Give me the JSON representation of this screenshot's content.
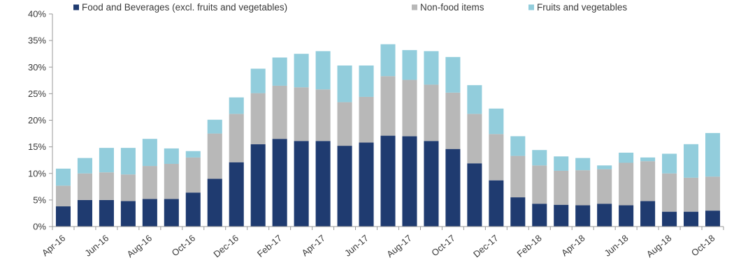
{
  "chart_data": {
    "type": "bar",
    "stacked": true,
    "categories": [
      "Apr-16",
      "May-16",
      "Jun-16",
      "Jul-16",
      "Aug-16",
      "Sep-16",
      "Oct-16",
      "Nov-16",
      "Dec-16",
      "Jan-17",
      "Feb-17",
      "Mar-17",
      "Apr-17",
      "May-17",
      "Jun-17",
      "Jul-17",
      "Aug-17",
      "Sep-17",
      "Oct-17",
      "Nov-17",
      "Dec-17",
      "Jan-18",
      "Feb-18",
      "Mar-18",
      "Apr-18",
      "May-18",
      "Jun-18",
      "Jul-18",
      "Aug-18",
      "Sep-18",
      "Oct-18"
    ],
    "x_tick_labels": [
      "Apr-16",
      "Jun-16",
      "Aug-16",
      "Oct-16",
      "Dec-16",
      "Feb-17",
      "Apr-17",
      "Jun-17",
      "Aug-17",
      "Oct-17",
      "Dec-17",
      "Feb-18",
      "Apr-18",
      "Jun-18",
      "Aug-18",
      "Oct-18"
    ],
    "series": [
      {
        "name": "Food and Beverages (excl. fruits and vegetables)",
        "color": "#1f3b70",
        "values": [
          3.8,
          5.0,
          5.0,
          4.8,
          5.2,
          5.2,
          6.4,
          9.0,
          12.1,
          15.5,
          16.5,
          16.1,
          16.1,
          15.2,
          15.8,
          17.1,
          17.0,
          16.1,
          14.6,
          11.9,
          8.7,
          5.5,
          4.3,
          4.1,
          4.0,
          4.3,
          4.0,
          4.8,
          2.8,
          2.8,
          3.0
        ]
      },
      {
        "name": "Non-food items",
        "color": "#b8b8b8",
        "values": [
          3.9,
          5.0,
          5.2,
          5.0,
          6.2,
          6.6,
          6.6,
          8.5,
          9.1,
          9.6,
          10.0,
          10.1,
          9.7,
          8.2,
          8.6,
          11.2,
          10.6,
          10.6,
          10.6,
          9.3,
          8.7,
          7.8,
          7.2,
          6.4,
          6.6,
          6.5,
          8.0,
          7.5,
          7.2,
          6.4,
          6.4
        ]
      },
      {
        "name": "Fruits and vegetables",
        "color": "#92cddc",
        "values": [
          3.2,
          2.9,
          4.6,
          5.0,
          5.1,
          2.9,
          1.2,
          2.6,
          3.1,
          4.6,
          5.3,
          6.3,
          7.2,
          6.9,
          5.9,
          6.0,
          5.6,
          6.3,
          6.7,
          5.4,
          4.8,
          3.7,
          2.9,
          2.7,
          2.3,
          0.7,
          1.9,
          0.7,
          3.7,
          6.3,
          8.2
        ]
      }
    ],
    "ylim": [
      0,
      40
    ],
    "y_ticks": [
      "0%",
      "5%",
      "10%",
      "15%",
      "20%",
      "25%",
      "30%",
      "35%",
      "40%"
    ],
    "grid": false,
    "legend_position": "top"
  }
}
